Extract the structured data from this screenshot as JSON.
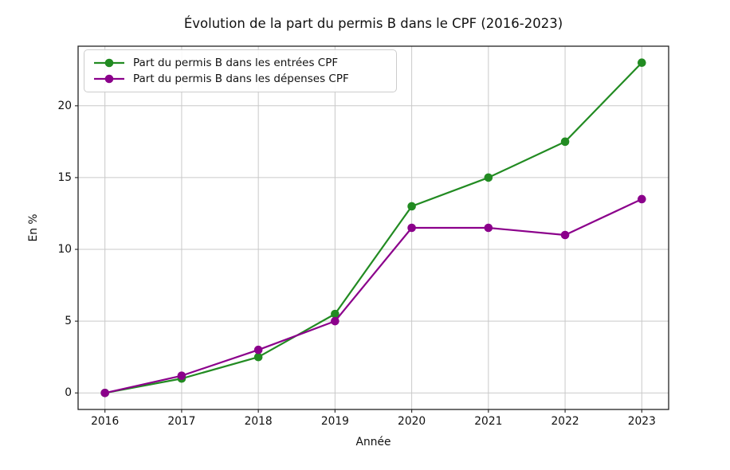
{
  "chart_data": {
    "type": "line",
    "title": "Évolution de la part du permis B dans le CPF (2016-2023)",
    "xlabel": "Année",
    "ylabel": "En %",
    "categories": [
      "2016",
      "2017",
      "2018",
      "2019",
      "2020",
      "2021",
      "2022",
      "2023"
    ],
    "series": [
      {
        "name": "Part du permis B dans les entrées CPF",
        "color": "#228B22",
        "marker": "circle",
        "values": [
          0,
          1,
          2.5,
          5.5,
          13,
          15,
          17.5,
          23
        ]
      },
      {
        "name": "Part du permis B dans les dépenses CPF",
        "color": "#8B008B",
        "marker": "circle",
        "values": [
          0,
          1.2,
          3,
          5,
          11.5,
          11.5,
          11,
          13.5
        ]
      }
    ],
    "yticks": [
      0,
      5,
      10,
      15,
      20
    ],
    "ylim": [
      -1.15,
      24.15
    ],
    "xlim": [
      -0.35,
      7.35
    ],
    "grid": true,
    "grid_color": "#c9c9c9",
    "spine_color": "#222222",
    "tick_color": "#333333",
    "legend_position": "upper left"
  }
}
